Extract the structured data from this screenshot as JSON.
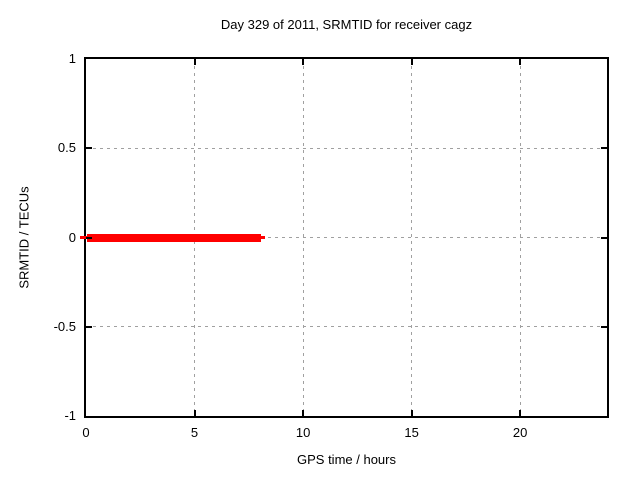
{
  "chart_data": {
    "type": "line",
    "title": "Day 329 of 2011, SRMTID for receiver cagz",
    "xlabel": "GPS time / hours",
    "ylabel": "SRMTID / TECUs",
    "xlim": [
      0,
      24
    ],
    "ylim": [
      -1,
      1
    ],
    "xticks": [
      0,
      5,
      10,
      15,
      20
    ],
    "yticks": [
      1,
      0.5,
      0,
      -0.5,
      -1
    ],
    "grid": true,
    "grid_color": "#a0a0a0",
    "border_color": "#000000",
    "background_color": "#ffffff",
    "legend": "none",
    "series": [
      {
        "name": "SRMTID",
        "color": "#ff0000",
        "style": "thick horizontal segment with thin line ends",
        "y_value": 0,
        "x_start_hours": 0,
        "x_end_hours": 8.1,
        "points": [
          [
            0,
            0
          ],
          [
            8.1,
            0
          ]
        ],
        "segments": {
          "thin": {
            "x1": -0.3,
            "x2": 8.25,
            "thickness_px": 3
          },
          "thick": {
            "x1": 0.05,
            "x2": 8.05,
            "thickness_px": 8
          }
        }
      }
    ]
  }
}
